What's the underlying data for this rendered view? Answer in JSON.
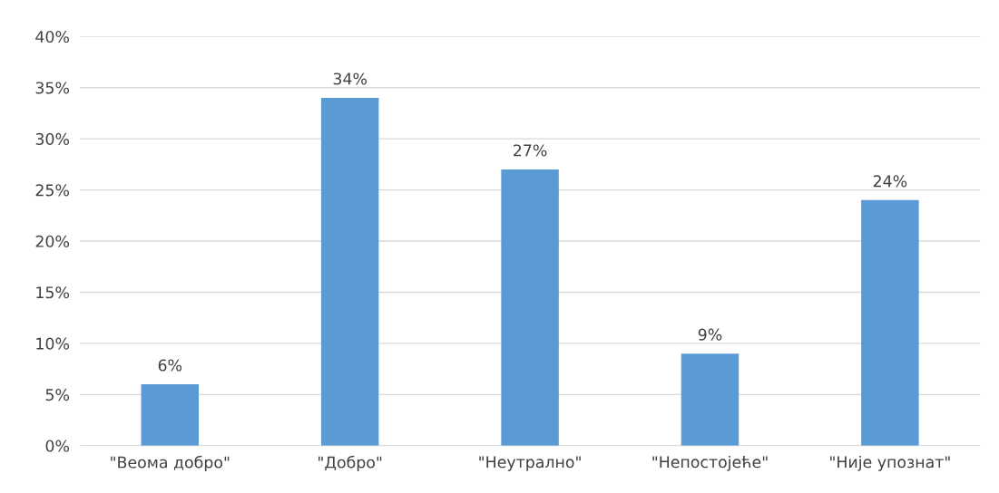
{
  "chart_data": {
    "type": "bar",
    "categories": [
      "\"Веома добро\"",
      "\"Добро\"",
      "\"Неутрално\"",
      "\"Непостојеће\"",
      "\"Није упознат\""
    ],
    "values": [
      6,
      34,
      27,
      9,
      24
    ],
    "value_labels": [
      "6%",
      "34%",
      "27%",
      "9%",
      "24%"
    ],
    "color": "#5b9bd5",
    "ylim": [
      0,
      40
    ],
    "yticks": [
      {
        "value": 0,
        "label": "0%"
      },
      {
        "value": 5,
        "label": "5%"
      },
      {
        "value": 10,
        "label": "10%"
      },
      {
        "value": 15,
        "label": "15%"
      },
      {
        "value": 20,
        "label": "20%"
      },
      {
        "value": 25,
        "label": "25%"
      },
      {
        "value": 30,
        "label": "30%"
      },
      {
        "value": 35,
        "label": "35%"
      },
      {
        "value": 40,
        "label": "40%"
      }
    ],
    "grid": "y"
  }
}
